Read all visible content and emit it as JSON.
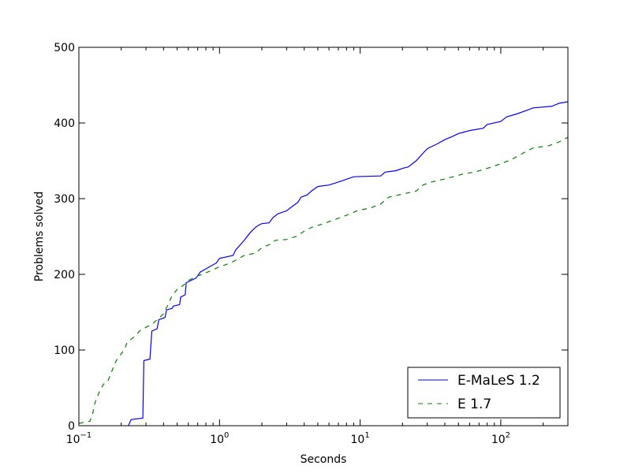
{
  "chart_data": {
    "type": "line",
    "xlabel": "Seconds",
    "ylabel": "Problems solved",
    "xscale": "log",
    "xlim": [
      0.1,
      300
    ],
    "ylim": [
      0,
      500
    ],
    "x_ticks": [
      {
        "value": 0.1,
        "base": "10",
        "exp": "−1"
      },
      {
        "value": 1,
        "base": "10",
        "exp": "0"
      },
      {
        "value": 10,
        "base": "10",
        "exp": "1"
      },
      {
        "value": 100,
        "base": "10",
        "exp": "2"
      }
    ],
    "y_ticks": [
      0,
      100,
      200,
      300,
      400,
      500
    ],
    "legend_position": "bottom-right",
    "series": [
      {
        "name": "E-MaLeS 1.2",
        "color": "#0000ff",
        "dash": "solid",
        "points": [
          [
            0.225,
            0
          ],
          [
            0.235,
            8
          ],
          [
            0.285,
            10
          ],
          [
            0.29,
            86
          ],
          [
            0.32,
            88
          ],
          [
            0.33,
            125
          ],
          [
            0.36,
            128
          ],
          [
            0.37,
            140
          ],
          [
            0.41,
            143
          ],
          [
            0.42,
            153
          ],
          [
            0.46,
            155
          ],
          [
            0.47,
            158
          ],
          [
            0.52,
            160
          ],
          [
            0.53,
            170
          ],
          [
            0.57,
            173
          ],
          [
            0.58,
            189
          ],
          [
            0.68,
            195
          ],
          [
            0.73,
            203
          ],
          [
            0.85,
            210
          ],
          [
            0.95,
            215
          ],
          [
            1.0,
            221
          ],
          [
            1.25,
            225
          ],
          [
            1.3,
            232
          ],
          [
            1.5,
            245
          ],
          [
            1.65,
            255
          ],
          [
            1.8,
            262
          ],
          [
            1.9,
            265
          ],
          [
            2.0,
            267
          ],
          [
            2.25,
            268
          ],
          [
            2.4,
            275
          ],
          [
            2.6,
            280
          ],
          [
            3.0,
            284
          ],
          [
            3.3,
            290
          ],
          [
            3.6,
            295
          ],
          [
            3.8,
            302
          ],
          [
            4.2,
            305
          ],
          [
            4.5,
            310
          ],
          [
            5.0,
            316
          ],
          [
            6.0,
            318
          ],
          [
            7.0,
            322
          ],
          [
            9.0,
            329
          ],
          [
            14.0,
            330
          ],
          [
            15.0,
            335
          ],
          [
            18.0,
            337
          ],
          [
            20.0,
            340
          ],
          [
            22.0,
            342
          ],
          [
            25.0,
            350
          ],
          [
            28.0,
            360
          ],
          [
            30.0,
            366
          ],
          [
            35.0,
            372
          ],
          [
            40.0,
            378
          ],
          [
            45.0,
            382
          ],
          [
            50.0,
            386
          ],
          [
            55.0,
            388
          ],
          [
            60.0,
            390
          ],
          [
            75.0,
            393
          ],
          [
            80.0,
            398
          ],
          [
            100.0,
            402
          ],
          [
            110.0,
            408
          ],
          [
            130.0,
            412
          ],
          [
            150.0,
            416
          ],
          [
            170.0,
            420
          ],
          [
            230.0,
            422
          ],
          [
            260.0,
            426
          ],
          [
            300.0,
            428
          ]
        ]
      },
      {
        "name": "E 1.7",
        "color": "#008000",
        "dash": "dashed",
        "points": [
          [
            0.1,
            3
          ],
          [
            0.12,
            6
          ],
          [
            0.125,
            15
          ],
          [
            0.13,
            30
          ],
          [
            0.14,
            45
          ],
          [
            0.15,
            55
          ],
          [
            0.16,
            58
          ],
          [
            0.17,
            70
          ],
          [
            0.18,
            82
          ],
          [
            0.19,
            90
          ],
          [
            0.2,
            95
          ],
          [
            0.21,
            100
          ],
          [
            0.22,
            110
          ],
          [
            0.25,
            118
          ],
          [
            0.27,
            125
          ],
          [
            0.3,
            130
          ],
          [
            0.32,
            133
          ],
          [
            0.34,
            136
          ],
          [
            0.36,
            140
          ],
          [
            0.4,
            148
          ],
          [
            0.43,
            160
          ],
          [
            0.46,
            172
          ],
          [
            0.5,
            180
          ],
          [
            0.55,
            185
          ],
          [
            0.6,
            192
          ],
          [
            0.7,
            198
          ],
          [
            0.8,
            202
          ],
          [
            0.9,
            206
          ],
          [
            1.0,
            210
          ],
          [
            1.2,
            215
          ],
          [
            1.5,
            225
          ],
          [
            1.8,
            228
          ],
          [
            2.0,
            235
          ],
          [
            2.3,
            240
          ],
          [
            2.5,
            245
          ],
          [
            3.0,
            246
          ],
          [
            3.5,
            250
          ],
          [
            4.0,
            257
          ],
          [
            4.5,
            262
          ],
          [
            5.5,
            267
          ],
          [
            6.5,
            272
          ],
          [
            8.0,
            278
          ],
          [
            9.5,
            284
          ],
          [
            12.0,
            288
          ],
          [
            14.0,
            293
          ],
          [
            16.0,
            302
          ],
          [
            20.0,
            306
          ],
          [
            25.0,
            310
          ],
          [
            28.0,
            318
          ],
          [
            32.0,
            322
          ],
          [
            40.0,
            326
          ],
          [
            48.0,
            330
          ],
          [
            55.0,
            333
          ],
          [
            65.0,
            335
          ],
          [
            80.0,
            340
          ],
          [
            100.0,
            346
          ],
          [
            120.0,
            352
          ],
          [
            150.0,
            362
          ],
          [
            170.0,
            367
          ],
          [
            220.0,
            370
          ],
          [
            260.0,
            375
          ],
          [
            300.0,
            381
          ]
        ]
      }
    ]
  }
}
